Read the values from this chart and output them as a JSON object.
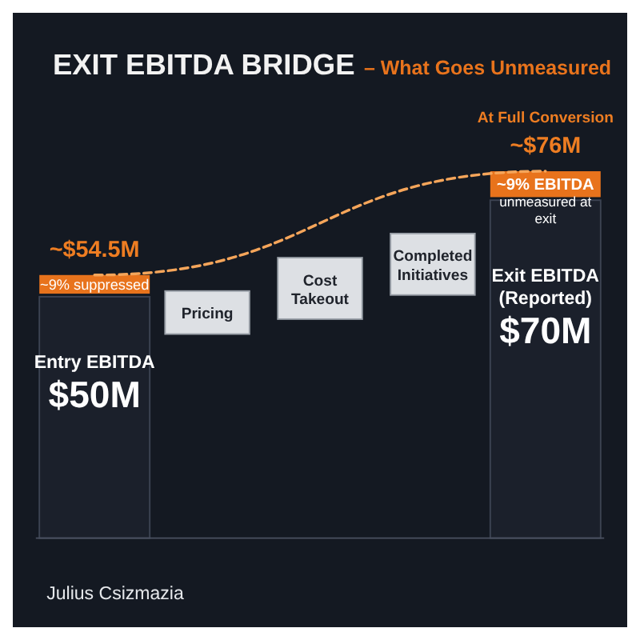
{
  "chart_data": {
    "type": "bar",
    "title": "EXIT EBITDA BRIDGE",
    "subtitle": "– What Goes Unmeasured",
    "stacked": true,
    "categories": [
      "Entry EBITDA",
      "Pricing",
      "Cost Takeout",
      "Completed Initiatives",
      "Exit EBITDA (Reported)"
    ],
    "series": [
      {
        "colors": [
          "#1b202b",
          null,
          null,
          null,
          "#1b202b"
        ],
        "values": [
          50,
          null,
          null,
          null,
          70
        ],
        "value_labels": [
          "$50M",
          null,
          null,
          null,
          "$70M"
        ]
      },
      {
        "color": "#e8731c",
        "values": [
          4.5,
          null,
          null,
          null,
          6
        ]
      },
      {
        "type": "line",
        "color": "#f5a55a",
        "line_style": "dashed",
        "marker": "none",
        "x": [
          "Entry EBITDA",
          "Exit EBITDA (Reported)"
        ],
        "values": [
          54.5,
          76
        ]
      }
    ],
    "annotations": [
      {
        "text": "~$54.5M",
        "x": "Entry EBITDA",
        "y": 54.5
      },
      {
        "text": "~$76M",
        "x": "Exit EBITDA (Reported)",
        "y": 76
      },
      {
        "text": "At Full Conversion",
        "x": "Exit EBITDA (Reported)",
        "y": 76
      },
      {
        "text": "~9% suppressed",
        "x": "Entry EBITDA",
        "y": 50
      },
      {
        "text": "~9% EBITDA unmeasured at exit",
        "x": "Exit EBITDA (Reported)",
        "y": 70
      },
      "Julius Csizmazia"
    ]
  }
}
